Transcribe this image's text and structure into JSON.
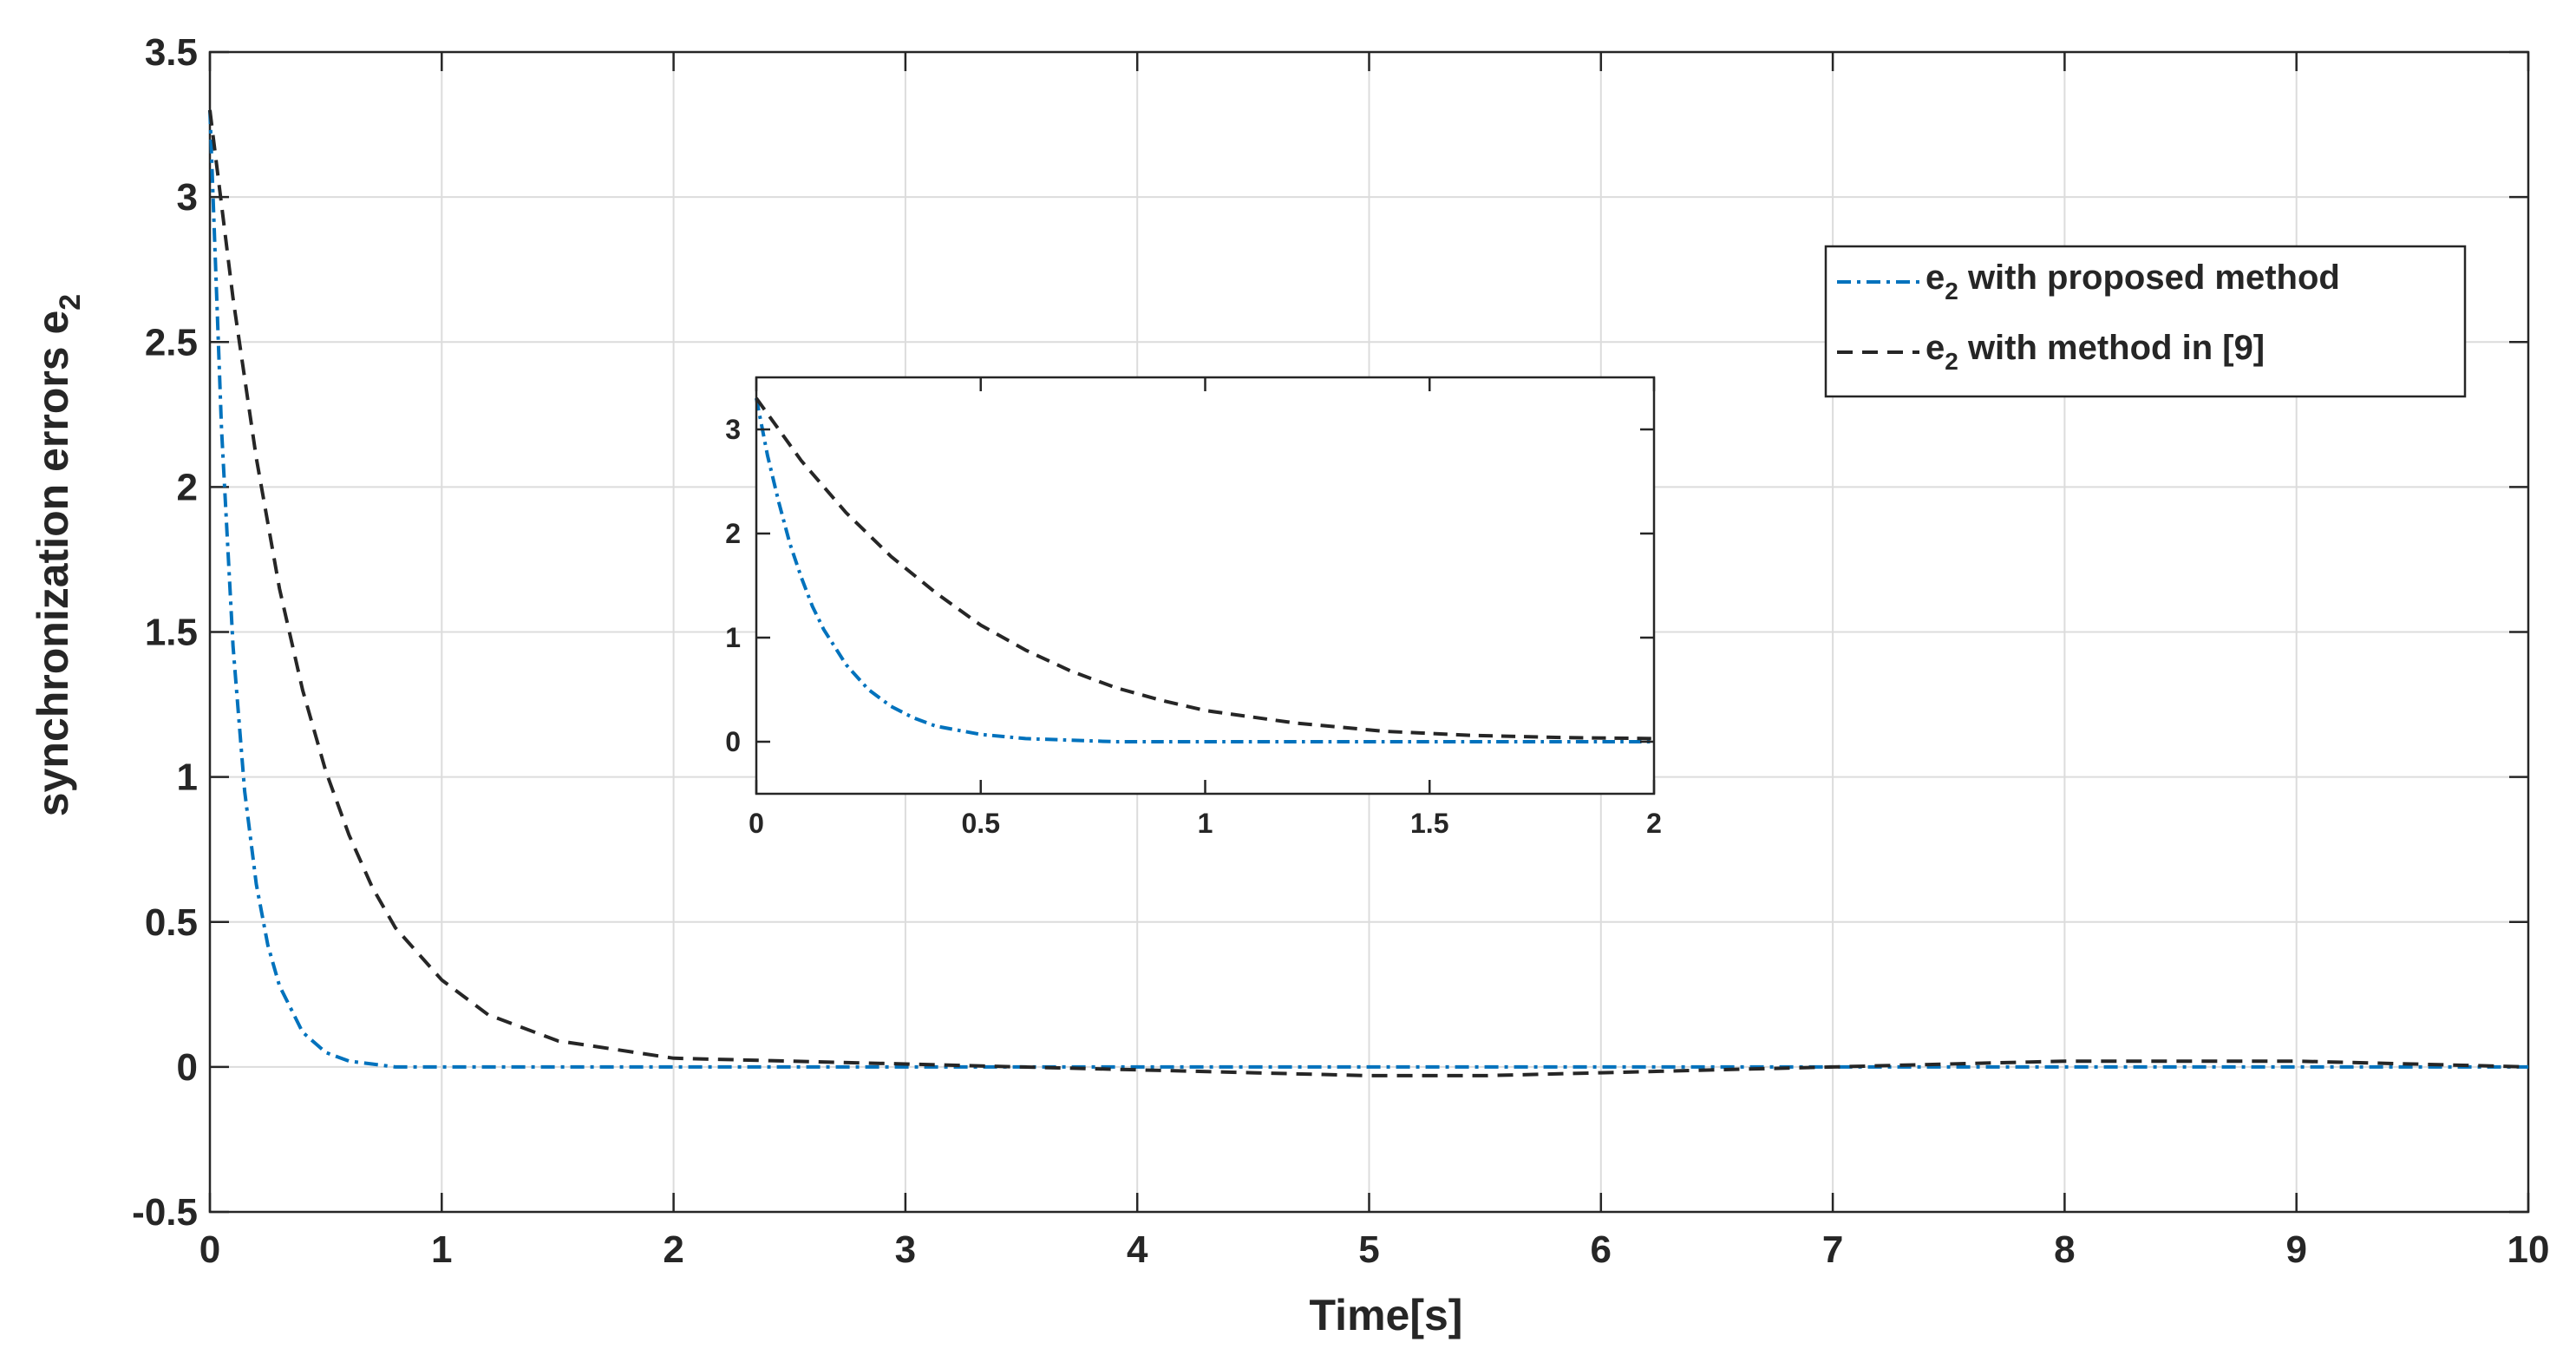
{
  "colors": {
    "proposed": "#0072BD",
    "method9": "#262626",
    "grid": "#dcdcdc",
    "axis": "#262626"
  },
  "chart_data": [
    {
      "type": "line",
      "xlabel": "Time[s]",
      "ylabel": "synchronization errors e",
      "ylabel_subscript": "2",
      "xlim": [
        0,
        10
      ],
      "ylim": [
        -0.5,
        3.5
      ],
      "x_ticks": [
        0,
        1,
        2,
        3,
        4,
        5,
        6,
        7,
        8,
        9,
        10
      ],
      "y_ticks": [
        -0.5,
        0,
        0.5,
        1,
        1.5,
        2,
        2.5,
        3,
        3.5
      ],
      "x_tick_labels": [
        "0",
        "1",
        "2",
        "3",
        "4",
        "5",
        "6",
        "7",
        "8",
        "9",
        "10"
      ],
      "y_tick_labels": [
        "-0.5",
        "0",
        "0.5",
        "1",
        "1.5",
        "2",
        "2.5",
        "3",
        "3.5"
      ],
      "grid": true,
      "legend_position": "top-right",
      "series": [
        {
          "name": "e2 with proposed method",
          "legend_main": "e",
          "legend_sub": "2",
          "legend_rest": " with proposed method",
          "style": "dash-dot",
          "color_key": "proposed",
          "x": [
            0,
            0.05,
            0.1,
            0.15,
            0.2,
            0.25,
            0.3,
            0.4,
            0.5,
            0.6,
            0.7,
            0.8,
            1.0,
            1.5,
            2,
            3,
            4,
            5,
            6,
            7,
            8,
            9,
            10
          ],
          "y": [
            3.3,
            2.2,
            1.45,
            0.95,
            0.63,
            0.42,
            0.28,
            0.12,
            0.05,
            0.02,
            0.01,
            0.0,
            0.0,
            0.0,
            0.0,
            0.0,
            0.0,
            0.0,
            0.0,
            0.0,
            0.0,
            0.0,
            0.0
          ]
        },
        {
          "name": "e2 with method in [9]",
          "legend_main": "e",
          "legend_sub": "2",
          "legend_rest": " with method in [9]",
          "style": "dashed",
          "color_key": "method9",
          "x": [
            0,
            0.1,
            0.2,
            0.3,
            0.4,
            0.5,
            0.6,
            0.7,
            0.8,
            1.0,
            1.2,
            1.5,
            2.0,
            2.5,
            3,
            3.5,
            4,
            4.5,
            5,
            5.5,
            6,
            6.5,
            7,
            7.5,
            8,
            8.5,
            9,
            9.5,
            10
          ],
          "y": [
            3.3,
            2.65,
            2.1,
            1.65,
            1.3,
            1.02,
            0.8,
            0.62,
            0.48,
            0.3,
            0.18,
            0.09,
            0.03,
            0.02,
            0.01,
            0.0,
            -0.01,
            -0.02,
            -0.03,
            -0.03,
            -0.02,
            -0.01,
            0.0,
            0.01,
            0.02,
            0.02,
            0.02,
            0.01,
            0.0
          ]
        }
      ]
    },
    {
      "type": "line",
      "role": "inset",
      "xlim": [
        0,
        2
      ],
      "ylim": [
        -0.5,
        3.5
      ],
      "x_ticks": [
        0,
        0.5,
        1,
        1.5,
        2
      ],
      "y_ticks": [
        0,
        1,
        2,
        3
      ],
      "x_tick_labels": [
        "0",
        "0.5",
        "1",
        "1.5",
        "2"
      ],
      "y_tick_labels": [
        "0",
        "1",
        "2",
        "3"
      ],
      "grid": false,
      "series": [
        {
          "style": "dash-dot",
          "color_key": "proposed",
          "x": [
            0,
            0.025,
            0.05,
            0.075,
            0.1,
            0.125,
            0.15,
            0.2,
            0.25,
            0.3,
            0.35,
            0.4,
            0.5,
            0.6,
            0.8,
            1.0,
            1.5,
            2.0
          ],
          "y": [
            3.3,
            2.75,
            2.3,
            1.9,
            1.58,
            1.3,
            1.08,
            0.74,
            0.5,
            0.34,
            0.23,
            0.15,
            0.07,
            0.03,
            0.0,
            0.0,
            0.0,
            0.0
          ]
        },
        {
          "style": "dashed",
          "color_key": "method9",
          "x": [
            0,
            0.1,
            0.2,
            0.3,
            0.4,
            0.5,
            0.6,
            0.7,
            0.8,
            0.9,
            1.0,
            1.2,
            1.4,
            1.6,
            1.8,
            2.0
          ],
          "y": [
            3.3,
            2.7,
            2.2,
            1.78,
            1.43,
            1.12,
            0.88,
            0.68,
            0.52,
            0.4,
            0.3,
            0.18,
            0.1,
            0.06,
            0.04,
            0.03
          ]
        }
      ]
    }
  ]
}
